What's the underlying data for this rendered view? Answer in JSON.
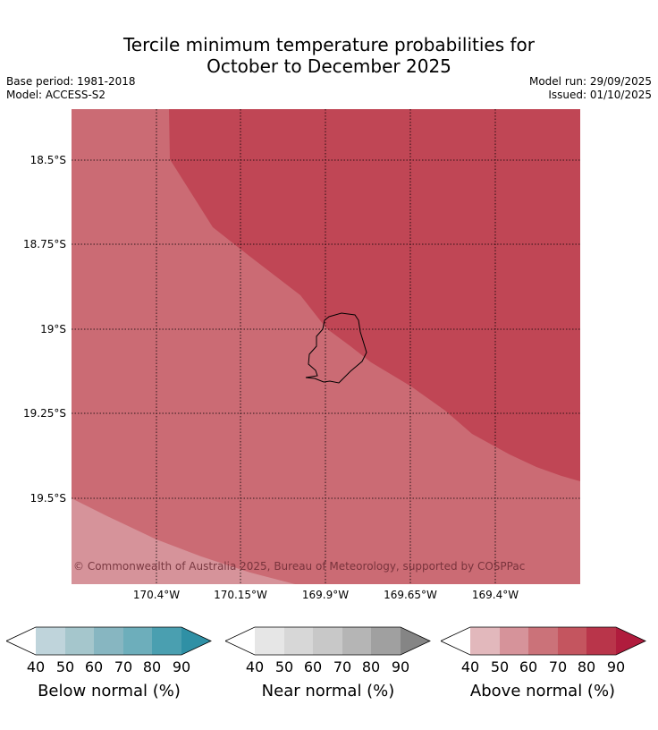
{
  "title_line1": "Tercile minimum temperature probabilities for",
  "title_line2": "October to December 2025",
  "base_period": "Base period: 1981-2018",
  "model": "Model: ACCESS-S2",
  "model_run": "Model run: 29/09/2025",
  "issued": "Issued: 01/10/2025",
  "copyright": "© Commonwealth of Australia 2025, Bureau of Meteorology, supported by COSPPac",
  "map": {
    "lat_labels": [
      "18.5°S",
      "18.75°S",
      "19°S",
      "19.25°S",
      "19.5°S"
    ],
    "lon_labels": [
      "170.4°W",
      "170.15°W",
      "169.9°W",
      "169.65°W",
      "169.4°W"
    ],
    "colors": {
      "above_60_70": "#cb6b74",
      "above_70_80": "#c04655",
      "above_50_60": "#d6939a"
    }
  },
  "legends": [
    {
      "name": "Below normal (%)",
      "ticks": [
        "40",
        "50",
        "60",
        "70",
        "80",
        "90"
      ],
      "colors": [
        "#ffffff",
        "#bfd4db",
        "#a5c6cc",
        "#87b6c1",
        "#6daebb",
        "#4a9fb0",
        "#2f90a5"
      ]
    },
    {
      "name": "Near normal (%)",
      "ticks": [
        "40",
        "50",
        "60",
        "70",
        "80",
        "90"
      ],
      "colors": [
        "#ffffff",
        "#e6e6e6",
        "#d7d7d7",
        "#c8c8c8",
        "#b5b5b5",
        "#a0a0a0",
        "#858585"
      ]
    },
    {
      "name": "Above normal (%)",
      "ticks": [
        "40",
        "50",
        "60",
        "70",
        "80",
        "90"
      ],
      "colors": [
        "#ffffff",
        "#e2b8bc",
        "#d6939a",
        "#cb7279",
        "#c4555f",
        "#b9354a",
        "#b01c3d"
      ]
    }
  ]
}
